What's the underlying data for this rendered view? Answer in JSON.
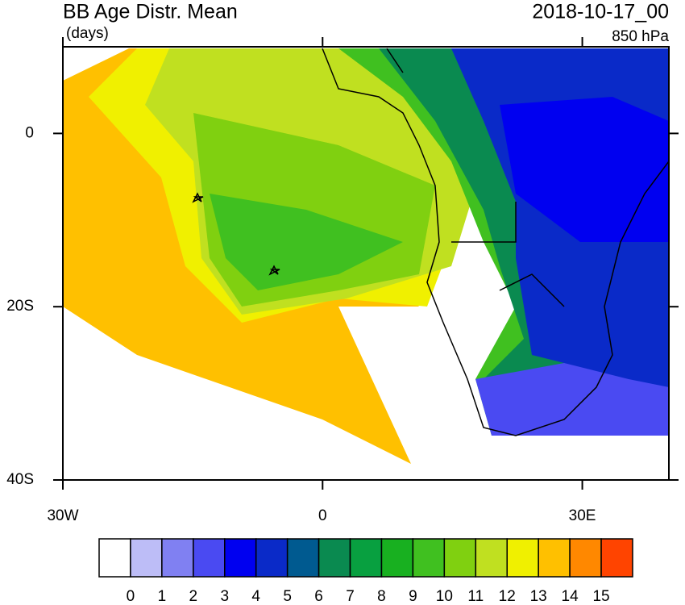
{
  "title": "BB Age Distr. Mean",
  "units": "(days)",
  "date": "2018-10-17_00",
  "level": "850 hPa",
  "map": {
    "xlim": [
      -30,
      40
    ],
    "ylim": [
      -40,
      10
    ],
    "xticks": [
      {
        "value": -30,
        "label": "30W"
      },
      0,
      {
        "value": 30,
        "label": "30E"
      }
    ],
    "yticks": [
      0,
      {
        "value": -20,
        "label": "20S"
      },
      {
        "value": -40,
        "label": "40S"
      }
    ]
  },
  "legend": {
    "colors": [
      "#ffffff",
      "#bdbdf7",
      "#8080f2",
      "#4a4af2",
      "#0000f0",
      "#0a2ac8",
      "#005a90",
      "#0a8a50",
      "#08a040",
      "#18b020",
      "#40c020",
      "#80d010",
      "#c0e020",
      "#f0f000",
      "#ffc000",
      "#ff8800",
      "#ff4400",
      "#ff0000"
    ],
    "labels": [
      0,
      1,
      2,
      3,
      4,
      5,
      6,
      7,
      8,
      9,
      10,
      11,
      12,
      13,
      14,
      15
    ]
  }
}
